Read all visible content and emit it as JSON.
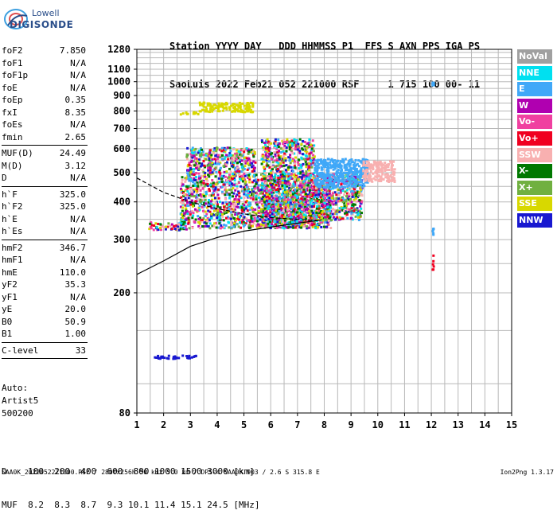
{
  "logo": {
    "brand": "Lowell",
    "name": "DIGISONDE"
  },
  "header": {
    "line1": "Station YYYY DAY   DDD HHMMSS P1  FFS S AXN PPS IGA PS",
    "line2": "SaoLuis 2022 Feb21 052 221000 RSF     1 715 100 00- 11"
  },
  "params": [
    {
      "name": "foF2",
      "value": "7.850"
    },
    {
      "name": "foF1",
      "value": "N/A"
    },
    {
      "name": "foF1p",
      "value": "N/A"
    },
    {
      "name": "foE",
      "value": "N/A"
    },
    {
      "name": "foEp",
      "value": "0.35"
    },
    {
      "name": "fxI",
      "value": "8.35"
    },
    {
      "name": "foEs",
      "value": "N/A"
    },
    {
      "name": "fmin",
      "value": "2.65"
    },
    {
      "sep": true
    },
    {
      "name": "MUF(D)",
      "value": "24.49"
    },
    {
      "name": "M(D)",
      "value": "3.12"
    },
    {
      "name": "D",
      "value": "N/A"
    },
    {
      "sep": true
    },
    {
      "name": "h`F",
      "value": "325.0"
    },
    {
      "name": "h`F2",
      "value": "325.0"
    },
    {
      "name": "h`E",
      "value": "N/A"
    },
    {
      "name": "h`Es",
      "value": "N/A"
    },
    {
      "sep": true
    },
    {
      "name": "hmF2",
      "value": "346.7"
    },
    {
      "name": "hmF1",
      "value": "N/A"
    },
    {
      "name": "hmE",
      "value": "110.0"
    },
    {
      "name": "yF2",
      "value": "35.3"
    },
    {
      "name": "yF1",
      "value": "N/A"
    },
    {
      "name": "yE",
      "value": "20.0"
    },
    {
      "name": "B0",
      "value": "50.9"
    },
    {
      "name": "B1",
      "value": "1.00"
    },
    {
      "sep": true
    },
    {
      "name": "C-level",
      "value": "33"
    },
    {
      "sep": true
    }
  ],
  "auto": [
    "Auto:",
    "Artist5",
    "500200"
  ],
  "legend": [
    {
      "label": "NoVal",
      "color": "#a0a0a0"
    },
    {
      "label": "NNE",
      "color": "#00e0f0"
    },
    {
      "label": "E",
      "color": "#40a8f8"
    },
    {
      "label": "W",
      "color": "#b000b0"
    },
    {
      "label": "Vo-",
      "color": "#f040a0"
    },
    {
      "label": "Vo+",
      "color": "#f00020"
    },
    {
      "label": "SSW",
      "color": "#f8b0b0"
    },
    {
      "label": "X-",
      "color": "#007800"
    },
    {
      "label": "X+",
      "color": "#70b040"
    },
    {
      "label": "SSE",
      "color": "#d8d800"
    },
    {
      "label": "NNW",
      "color": "#1818d0"
    }
  ],
  "muf_table": {
    "line1": "D    100  200  400  600  800 1000 1500 3000 [km]",
    "line2": "MUF  8.2  8.3  8.7  9.3 10.1 11.4 15.1 24.5 [MHz]"
  },
  "footer": {
    "text": "SAA0K_2022052221000.RSF / 280fx256h 50 kHz 5.0 km / DPS-4 SAA0K 903 / 2.6 S 315.8 E",
    "version": "Ion2Png 1.3.17"
  },
  "chart_data": {
    "type": "scatter",
    "title": "",
    "xlabel": "",
    "ylabel": "",
    "xlim": [
      1,
      15
    ],
    "ylim": [
      80,
      1280
    ],
    "y_scale": "log",
    "x_ticks": [
      1,
      2,
      3,
      4,
      5,
      6,
      7,
      8,
      9,
      10,
      11,
      12,
      13,
      14,
      15
    ],
    "y_ticks": [
      80,
      200,
      300,
      400,
      500,
      600,
      700,
      800,
      900,
      1000,
      1100,
      1280
    ],
    "grid": true,
    "series": [
      {
        "type": "line",
        "style": "solid",
        "x": [
          1.0,
          2.0,
          3.0,
          4.0,
          5.0,
          6.0,
          7.0,
          7.85,
          7.9
        ],
        "y": [
          230,
          255,
          285,
          305,
          320,
          330,
          340,
          348,
          350
        ]
      },
      {
        "type": "line",
        "style": "dashed",
        "x": [
          1.0,
          2.0,
          3.0,
          4.0,
          5.0,
          6.0,
          7.0,
          7.85
        ],
        "y": [
          480,
          430,
          400,
          380,
          365,
          355,
          350,
          347
        ]
      }
    ],
    "echo_clusters": [
      {
        "x": [
          2.6,
          3.3
        ],
        "y": [
          785,
          800
        ],
        "color": "SSE"
      },
      {
        "x": [
          3.3,
          5.3
        ],
        "y": [
          800,
          860
        ],
        "color": "SSE"
      },
      {
        "x": [
          1.4,
          2.9
        ],
        "y": [
          325,
          345
        ],
        "color": "mixed"
      },
      {
        "x": [
          2.6,
          8.2
        ],
        "y": [
          330,
          500
        ],
        "color": "mixed"
      },
      {
        "x": [
          2.8,
          5.4
        ],
        "y": [
          500,
          610
        ],
        "color": "mixed"
      },
      {
        "x": [
          5.6,
          7.6
        ],
        "y": [
          330,
          650
        ],
        "color": "mixed"
      },
      {
        "x": [
          7.6,
          9.4
        ],
        "y": [
          350,
          500
        ],
        "color": "mixed"
      },
      {
        "x": [
          7.6,
          9.6
        ],
        "y": [
          450,
          560
        ],
        "color": "E"
      },
      {
        "x": [
          9.4,
          10.6
        ],
        "y": [
          470,
          550
        ],
        "color": "SSW"
      },
      {
        "x": [
          1.6,
          3.2
        ],
        "y": [
          122,
          125
        ],
        "color": "NNW"
      },
      {
        "x": [
          12.0,
          12.05
        ],
        "y": [
          980,
          1010
        ],
        "color": "E"
      },
      {
        "x": [
          12.0,
          12.05
        ],
        "y": [
          240,
          270
        ],
        "color": "Vo+"
      },
      {
        "x": [
          12.0,
          12.05
        ],
        "y": [
          310,
          330
        ],
        "color": "E"
      }
    ]
  }
}
